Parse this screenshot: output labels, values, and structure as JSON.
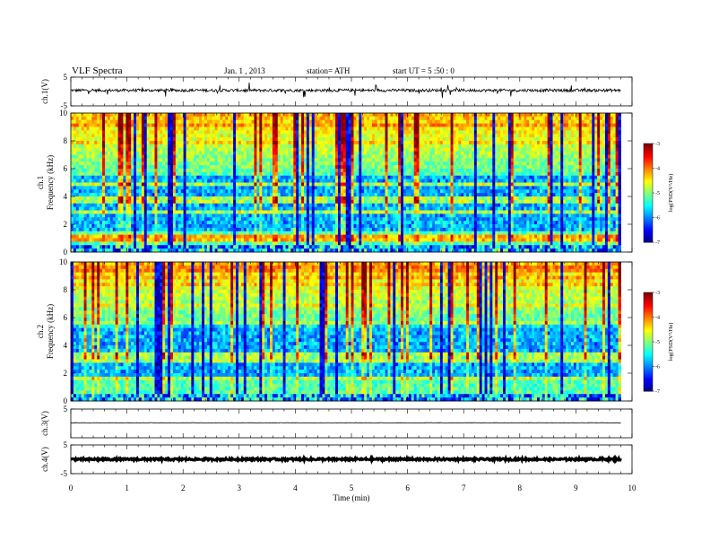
{
  "header": {
    "title": "VLF  Spectra",
    "date": "Jan.  1  ,  2013",
    "station": "station= ATH",
    "start": "start  UT  =   5  :50 :  0"
  },
  "chart_data": [
    {
      "type": "line",
      "panel": "ch1-waveform",
      "ylabel": "ch.1(V)",
      "ylim": [
        -5,
        5
      ],
      "yticks": [
        "5",
        "-5"
      ],
      "x_range_min": [
        0,
        9.8
      ],
      "baseline": 0.4,
      "color": "#000000"
    },
    {
      "type": "heatmap",
      "panel": "ch1-spectrogram",
      "ylabel_channel": "ch.1",
      "ylabel": "Frequency  (kHz)",
      "ylim": [
        0,
        10
      ],
      "yticks": [
        "0",
        "2",
        "4",
        "6",
        "8",
        "10"
      ],
      "x_range_min": [
        0,
        9.8
      ],
      "colorbar": {
        "label": "log(PSD(V²/Hz)",
        "range": [
          -7,
          -3
        ],
        "ticks": [
          "-3",
          "-4",
          "-5",
          "-6",
          "-7"
        ]
      }
    },
    {
      "type": "heatmap",
      "panel": "ch2-spectrogram",
      "ylabel_channel": "ch.2",
      "ylabel": "Frequency  (kHz)",
      "ylim": [
        0,
        10
      ],
      "yticks": [
        "0",
        "2",
        "4",
        "6",
        "8",
        "10"
      ],
      "x_range_min": [
        0,
        9.8
      ],
      "colorbar": {
        "label": "log(PSD(V²/Hz)",
        "range": [
          -7,
          -3
        ],
        "ticks": [
          "-3",
          "-4",
          "-5",
          "-6",
          "-7"
        ]
      }
    },
    {
      "type": "line",
      "panel": "ch3-waveform",
      "ylabel": "ch.3(V)",
      "ylim": [
        -5,
        5
      ],
      "yticks": [
        "5"
      ],
      "x_range_min": [
        0,
        9.8
      ],
      "baseline": 0.2,
      "color": "#000000"
    },
    {
      "type": "line",
      "panel": "ch4-waveform",
      "ylabel": "ch.4(V)",
      "ylim": [
        -5,
        5
      ],
      "yticks": [
        "5",
        "-5"
      ],
      "x_range_min": [
        0,
        9.8
      ],
      "baseline": 0,
      "color": "#000000"
    }
  ],
  "xaxis": {
    "label": "Time  (min)",
    "range": [
      0,
      10
    ],
    "ticks": [
      "0",
      "1",
      "2",
      "3",
      "4",
      "5",
      "6",
      "7",
      "8",
      "9",
      "10"
    ]
  }
}
